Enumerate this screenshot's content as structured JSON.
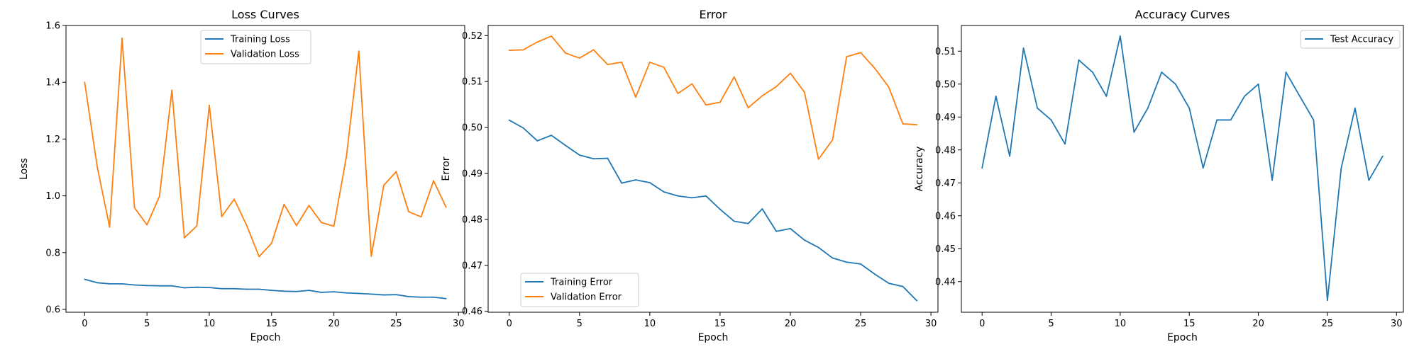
{
  "chart_data": [
    {
      "type": "line",
      "title": "Loss Curves",
      "xlabel": "Epoch",
      "ylabel": "Loss",
      "xlim": [
        -1.5,
        30.5
      ],
      "ylim": [
        0.59,
        1.6
      ],
      "xticks": [
        0,
        5,
        10,
        15,
        20,
        25,
        30
      ],
      "xtick_labels": [
        "0",
        "5",
        "10",
        "15",
        "20",
        "25",
        "30"
      ],
      "yticks": [
        0.6,
        0.8,
        1.0,
        1.2,
        1.4,
        1.6
      ],
      "ytick_labels": [
        "0.6",
        "0.8",
        "1.0",
        "1.2",
        "1.4",
        "1.6"
      ],
      "grid": false,
      "legend_position": "top-center",
      "x": [
        0,
        1,
        2,
        3,
        4,
        5,
        6,
        7,
        8,
        9,
        10,
        11,
        12,
        13,
        14,
        15,
        16,
        17,
        18,
        19,
        20,
        21,
        22,
        23,
        24,
        25,
        26,
        27,
        28,
        29
      ],
      "series": [
        {
          "name": "Training Loss",
          "color": "#1f77b4",
          "values": [
            0.706,
            0.694,
            0.69,
            0.69,
            0.686,
            0.684,
            0.683,
            0.683,
            0.676,
            0.678,
            0.677,
            0.673,
            0.673,
            0.671,
            0.671,
            0.667,
            0.664,
            0.663,
            0.667,
            0.66,
            0.662,
            0.658,
            0.656,
            0.654,
            0.651,
            0.652,
            0.645,
            0.643,
            0.643,
            0.638
          ]
        },
        {
          "name": "Validation Loss",
          "color": "#ff7f0e",
          "values": [
            1.4,
            1.104,
            0.89,
            1.555,
            0.958,
            0.898,
            0.998,
            1.372,
            0.852,
            0.894,
            1.319,
            0.927,
            0.988,
            0.896,
            0.786,
            0.833,
            0.97,
            0.895,
            0.966,
            0.906,
            0.893,
            1.137,
            1.51,
            0.787,
            1.037,
            1.085,
            0.944,
            0.926,
            1.053,
            0.96
          ]
        }
      ]
    },
    {
      "type": "line",
      "title": "Error",
      "xlabel": "Epoch",
      "ylabel": "Error",
      "xlim": [
        -1.5,
        30.5
      ],
      "ylim": [
        0.4598,
        0.5222
      ],
      "xticks": [
        0,
        5,
        10,
        15,
        20,
        25,
        30
      ],
      "xtick_labels": [
        "0",
        "5",
        "10",
        "15",
        "20",
        "25",
        "30"
      ],
      "yticks": [
        0.46,
        0.47,
        0.48,
        0.49,
        0.5,
        0.51,
        0.52
      ],
      "ytick_labels": [
        "0.46",
        "0.47",
        "0.48",
        "0.49",
        "0.50",
        "0.51",
        "0.52"
      ],
      "grid": false,
      "legend_position": "bottom-left",
      "x": [
        0,
        1,
        2,
        3,
        4,
        5,
        6,
        7,
        8,
        9,
        10,
        11,
        12,
        13,
        14,
        15,
        16,
        17,
        18,
        19,
        20,
        21,
        22,
        23,
        24,
        25,
        26,
        27,
        28,
        29
      ],
      "series": [
        {
          "name": "Training Error",
          "color": "#1f77b4",
          "values": [
            0.5016,
            0.4999,
            0.4971,
            0.4983,
            0.4961,
            0.494,
            0.4932,
            0.4933,
            0.4879,
            0.4886,
            0.488,
            0.486,
            0.4851,
            0.4847,
            0.4851,
            0.4822,
            0.4796,
            0.4791,
            0.4823,
            0.4774,
            0.478,
            0.4755,
            0.4739,
            0.4716,
            0.4707,
            0.4703,
            0.4681,
            0.4661,
            0.4654,
            0.4623
          ]
        },
        {
          "name": "Validation Error",
          "color": "#ff7f0e",
          "values": [
            0.5168,
            0.5169,
            0.5186,
            0.5199,
            0.5162,
            0.5151,
            0.5169,
            0.5137,
            0.5142,
            0.5066,
            0.5142,
            0.5131,
            0.5074,
            0.5095,
            0.5049,
            0.5055,
            0.511,
            0.5043,
            0.5069,
            0.5089,
            0.5118,
            0.5077,
            0.4931,
            0.4973,
            0.5154,
            0.5163,
            0.5129,
            0.5088,
            0.5008,
            0.5006
          ]
        }
      ]
    },
    {
      "type": "line",
      "title": "Accuracy Curves",
      "xlabel": "Epoch",
      "ylabel": "Accuracy",
      "xlim": [
        -1.5,
        30.5
      ],
      "ylim": [
        0.4307,
        0.5178
      ],
      "xticks": [
        0,
        5,
        10,
        15,
        20,
        25,
        30
      ],
      "xtick_labels": [
        "0",
        "5",
        "10",
        "15",
        "20",
        "25",
        "30"
      ],
      "yticks": [
        0.44,
        0.45,
        0.46,
        0.47,
        0.48,
        0.49,
        0.5,
        0.51
      ],
      "ytick_labels": [
        "0.44",
        "0.45",
        "0.46",
        "0.47",
        "0.48",
        "0.49",
        "0.50",
        "0.51"
      ],
      "grid": false,
      "legend_position": "top-right",
      "x": [
        0,
        1,
        2,
        3,
        4,
        5,
        6,
        7,
        8,
        9,
        10,
        11,
        12,
        13,
        14,
        15,
        16,
        17,
        18,
        19,
        20,
        21,
        22,
        23,
        24,
        25,
        26,
        27,
        28,
        29
      ],
      "series": [
        {
          "name": "Test Accuracy",
          "color": "#1f77b4",
          "values": [
            0.4745,
            0.4963,
            0.4781,
            0.5109,
            0.4927,
            0.4891,
            0.4818,
            0.5073,
            0.5036,
            0.4963,
            0.5146,
            0.4854,
            0.4927,
            0.5036,
            0.5,
            0.4927,
            0.4745,
            0.4891,
            0.4891,
            0.4963,
            0.5,
            0.4708,
            0.5036,
            0.4963,
            0.4891,
            0.4343,
            0.4745,
            0.4927,
            0.4708,
            0.4781
          ]
        }
      ]
    }
  ]
}
